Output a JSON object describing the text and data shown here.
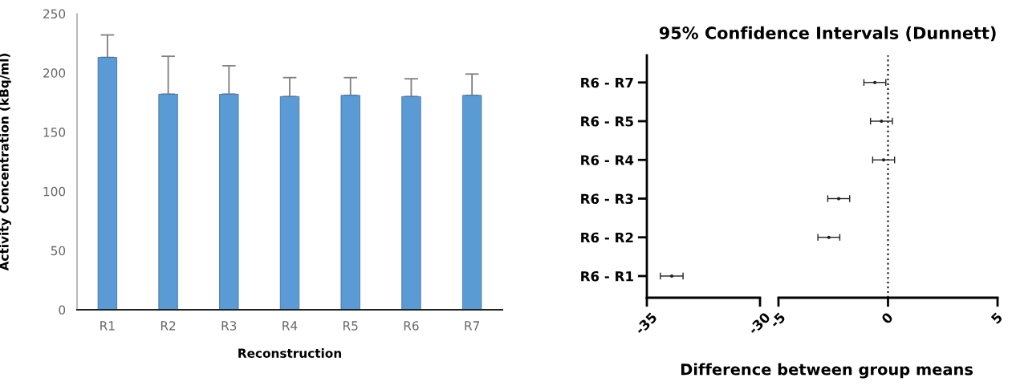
{
  "chart_data": [
    {
      "type": "bar",
      "xlabel": "Reconstruction",
      "ylabel": "Activity Concentration (kBq/ml)",
      "categories": [
        "R1",
        "R2",
        "R3",
        "R4",
        "R5",
        "R6",
        "R7"
      ],
      "values": [
        213,
        182,
        182,
        180,
        181,
        180,
        181
      ],
      "errors": [
        [
          213,
          232
        ],
        [
          182,
          214
        ],
        [
          182,
          206
        ],
        [
          180,
          196
        ],
        [
          181,
          196
        ],
        [
          180,
          195
        ],
        [
          181,
          199
        ]
      ],
      "color": "#5b9bd5",
      "ylim": [
        0,
        250
      ],
      "yticks": [
        0,
        50,
        100,
        150,
        200,
        250
      ]
    },
    {
      "type": "scatter",
      "orientation": "horizontal",
      "title": "95% Confidence Intervals (Dunnett)",
      "categories": [
        "R6 - R7",
        "R6 - R5",
        "R6 - R4",
        "R6 - R3",
        "R6 - R2",
        "R6 - R1"
      ],
      "values": [
        null,
        null,
        null,
        null,
        null,
        -33.9
      ],
      "errors": [
        null,
        null,
        null,
        null,
        null,
        0.5
      ],
      "color": "#222222",
      "marker": "circle",
      "xlim": [
        -35,
        -30
      ],
      "xticks": [
        -35,
        -30
      ]
    },
    {
      "type": "scatter",
      "orientation": "horizontal",
      "xlabel": "Difference between group means",
      "values": [
        -0.6,
        -0.3,
        -0.2,
        -2.25,
        -2.7,
        null
      ],
      "errors": [
        0.5,
        0.5,
        0.5,
        0.5,
        0.5,
        null
      ],
      "color": "#222222",
      "marker": "circle",
      "xlim": [
        -5,
        5
      ],
      "xticks": [
        -5,
        0,
        5
      ],
      "tick_labels": "x",
      "ref_lines": [
        {
          "axis": "x",
          "value": 0,
          "line_style": "dotted",
          "color": "#222222"
        }
      ]
    }
  ]
}
